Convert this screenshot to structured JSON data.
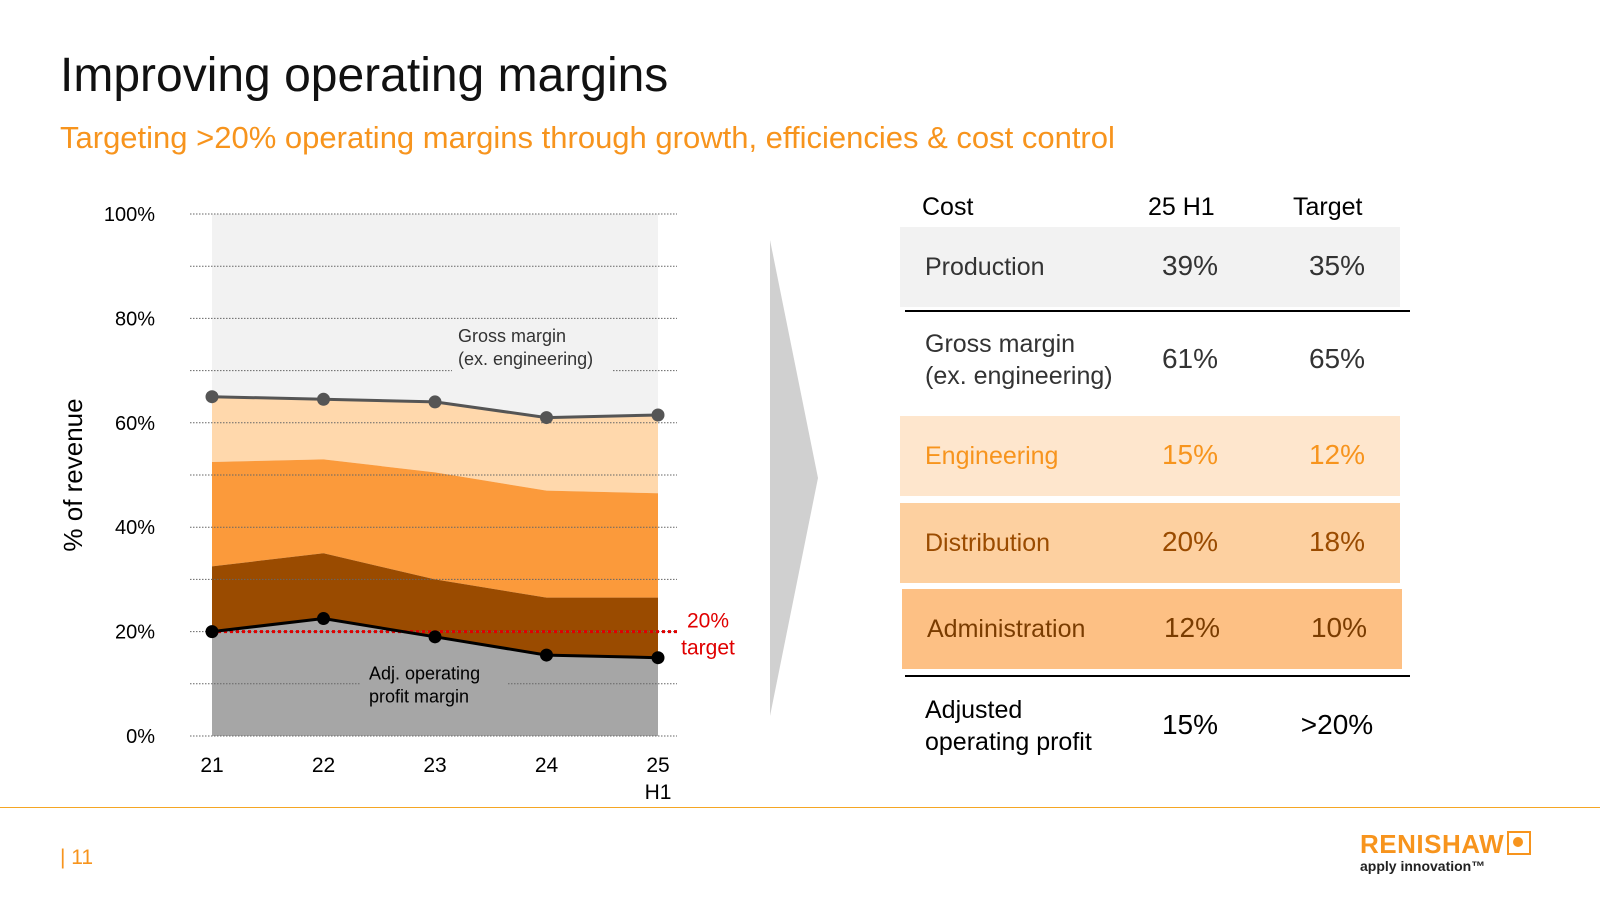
{
  "header": {
    "title": "Improving operating margins",
    "subtitle": "Targeting >20% operating margins through growth, efficiencies & cost control"
  },
  "chart_data": {
    "type": "area",
    "ylabel": "% of revenue",
    "ylim": [
      0,
      100
    ],
    "yticks": [
      "0%",
      "20%",
      "40%",
      "60%",
      "80%",
      "100%"
    ],
    "yticks_values": [
      0,
      20,
      40,
      60,
      80,
      100
    ],
    "x": [
      {
        "line1": "21",
        "line2": ""
      },
      {
        "line1": "22",
        "line2": ""
      },
      {
        "line1": "23",
        "line2": ""
      },
      {
        "line1": "24",
        "line2": ""
      },
      {
        "line1": "25",
        "line2": "H1"
      }
    ],
    "series": [
      {
        "name": "Adj. operating profit margin",
        "values": [
          20,
          22.5,
          19,
          15.5,
          15
        ]
      },
      {
        "name": "Administration",
        "values": [
          32.5,
          35,
          30,
          26.5,
          26.5
        ]
      },
      {
        "name": "Distribution",
        "values": [
          52.5,
          53,
          50.5,
          47,
          46.5
        ]
      },
      {
        "name": "Engineering",
        "values": [
          65,
          64.5,
          64,
          61,
          61.5
        ]
      },
      {
        "name": "Gross margin (ex. engineering)",
        "values": [
          65,
          64.5,
          64,
          61,
          61.5
        ]
      }
    ],
    "target_line": {
      "value": 20,
      "label_line1": "20%",
      "label_line2": "target"
    },
    "annotations": {
      "gross_margin": [
        "Gross margin",
        "(ex. engineering)"
      ],
      "op_profit": [
        "Adj. operating",
        "profit margin"
      ]
    },
    "colors": {
      "background_band": "#f2f2f2",
      "gross_area": "#ffd8ac",
      "engineering_area": "#fb9a3b",
      "distribution_area": "#9a4b00",
      "profit_area": "#a6a6a6",
      "gross_line": "#555555",
      "profit_line": "#000000",
      "target_line": "#e00000",
      "grid": "#666666"
    }
  },
  "cost_table": {
    "headers": {
      "cost": "Cost",
      "h1": "25 H1",
      "target": "Target"
    },
    "rows": [
      {
        "label": [
          "Production"
        ],
        "h1": "39%",
        "target": "35%",
        "bg": "#f2f2f2",
        "color": "#333333"
      },
      {
        "label": [
          "Gross margin",
          "(ex. engineering)"
        ],
        "h1": "61%",
        "target": "65%",
        "bg": "#ffffff",
        "color": "#333333"
      },
      {
        "label": [
          "Engineering"
        ],
        "h1": "15%",
        "target": "12%",
        "bg": "#fee6cd",
        "color": "#f7941d"
      },
      {
        "label": [
          "Distribution"
        ],
        "h1": "20%",
        "target": "18%",
        "bg": "#fdd0a0",
        "color": "#9a4b00"
      },
      {
        "label": [
          "Administration"
        ],
        "h1": "12%",
        "target": "10%",
        "bg": "#fdc084",
        "color": "#7a3c00"
      },
      {
        "label": [
          "Adjusted",
          "operating profit"
        ],
        "h1": "15%",
        "target": ">20%",
        "bg": "#ffffff",
        "color": "#000000"
      }
    ]
  },
  "footer": {
    "page_number": "| 11",
    "logo_text": "RENISHAW",
    "tagline": "apply innovation™"
  }
}
